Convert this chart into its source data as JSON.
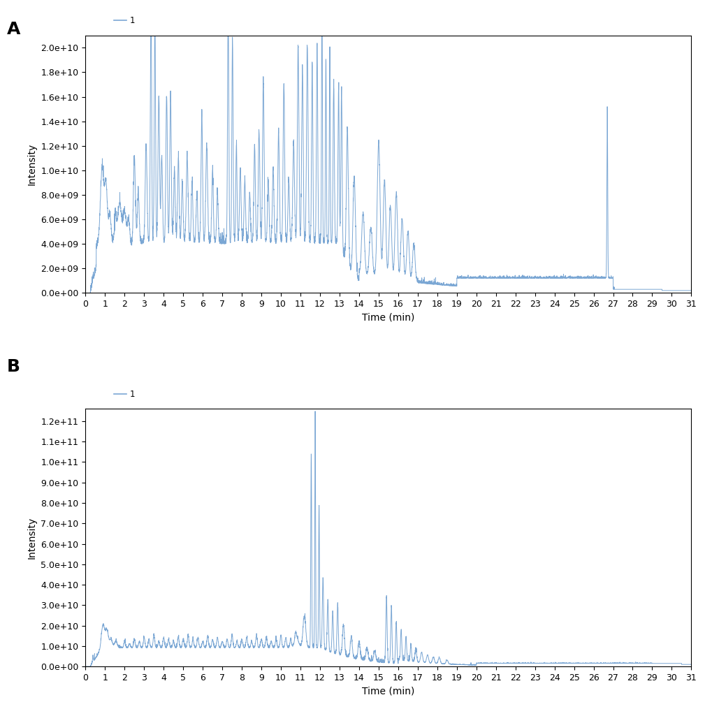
{
  "line_color": "#7BA7D4",
  "line_width": 0.7,
  "background_color": "#ffffff",
  "xlabel": "Time (min)",
  "ylabel": "Intensity",
  "legend_label": "1",
  "panel_A_label": "A",
  "panel_B_label": "B",
  "xlim": [
    0,
    31
  ],
  "xticks": [
    0,
    1,
    2,
    3,
    4,
    5,
    6,
    7,
    8,
    9,
    10,
    11,
    12,
    13,
    14,
    15,
    16,
    17,
    18,
    19,
    20,
    21,
    22,
    23,
    24,
    25,
    26,
    27,
    28,
    29,
    30,
    31
  ],
  "panel_A_ylim": [
    0,
    21000000000.0
  ],
  "panel_A_yticks": [
    0.0,
    2000000000.0,
    4000000000.0,
    6000000000.0,
    8000000000.0,
    10000000000.0,
    12000000000.0,
    14000000000.0,
    16000000000.0,
    18000000000.0,
    20000000000.0
  ],
  "panel_B_ylim": [
    0,
    126000000000.0
  ],
  "panel_B_yticks": [
    0.0,
    10000000000.0,
    20000000000.0,
    30000000000.0,
    40000000000.0,
    50000000000.0,
    60000000000.0,
    70000000000.0,
    80000000000.0,
    90000000000.0,
    100000000000.0,
    110000000000.0,
    120000000000.0
  ],
  "tick_fontsize": 9,
  "label_fontsize": 10,
  "panel_label_fontsize": 18,
  "figsize": [
    10.2,
    10.15
  ],
  "dpi": 100
}
